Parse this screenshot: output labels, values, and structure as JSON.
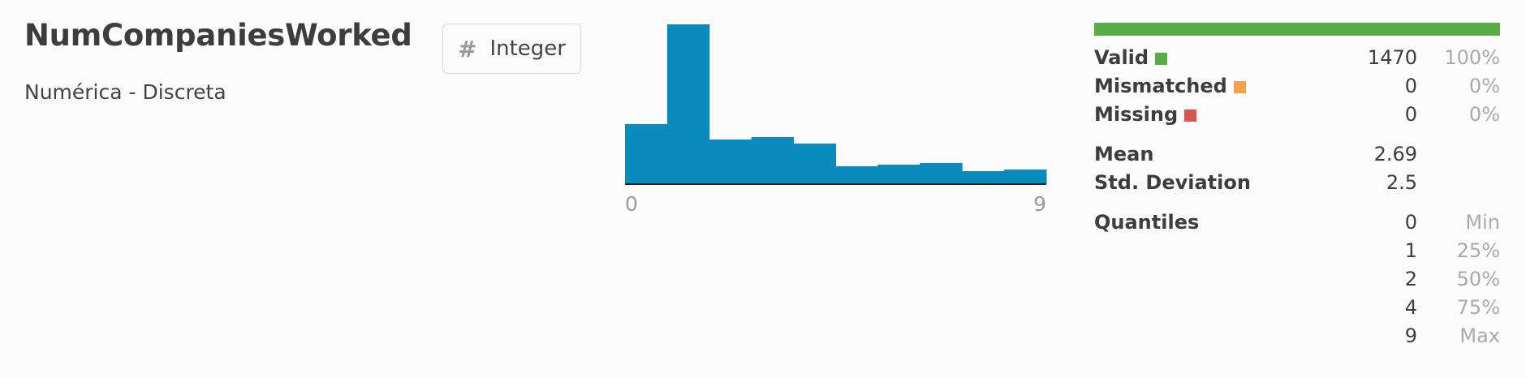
{
  "title": "NumCompaniesWorked",
  "subtitle": "Numérica - Discreta",
  "type_badge": {
    "icon": "#",
    "label": "Integer"
  },
  "colors": {
    "bar": "#0a8bbd",
    "valid": "#5aac44",
    "mismatched": "#f5a04a",
    "missing": "#d9534f"
  },
  "chart_data": {
    "type": "bar",
    "title": "",
    "xlabel": "",
    "ylabel": "",
    "x_tick_labels": [
      "0",
      "9"
    ],
    "bins": 10,
    "values": [
      74,
      197,
      55,
      58,
      50,
      22,
      24,
      26,
      16,
      18
    ],
    "ylim": [
      0,
      200
    ]
  },
  "quality": {
    "valid": {
      "label": "Valid",
      "value": "1470",
      "pct": "100%"
    },
    "mismatched": {
      "label": "Mismatched",
      "value": "0",
      "pct": "0%"
    },
    "missing": {
      "label": "Missing",
      "value": "0",
      "pct": "0%"
    }
  },
  "summary": {
    "mean": {
      "label": "Mean",
      "value": "2.69"
    },
    "std": {
      "label": "Std. Deviation",
      "value": "2.5"
    }
  },
  "quantiles": {
    "label": "Quantiles",
    "rows": [
      {
        "value": "0",
        "tag": "Min"
      },
      {
        "value": "1",
        "tag": "25%"
      },
      {
        "value": "2",
        "tag": "50%"
      },
      {
        "value": "4",
        "tag": "75%"
      },
      {
        "value": "9",
        "tag": "Max"
      }
    ]
  }
}
